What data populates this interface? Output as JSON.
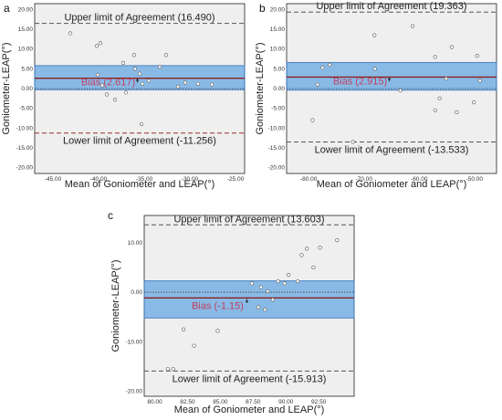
{
  "chart_data": [
    {
      "panel": "a",
      "type": "scatter",
      "xlabel": "Mean of Goniometer and LEAP(°)",
      "ylabel": "Goniometer-LEAP(°)",
      "xlim": [
        -47,
        -24
      ],
      "ylim": [
        -21.5,
        21.5
      ],
      "xticks": [
        "-45.00",
        "-40.00",
        "-35.00",
        "-30.00",
        "-25.00"
      ],
      "xtick_values": [
        -45,
        -40,
        -35,
        -30,
        -25
      ],
      "yticks": [
        "20.00",
        "15.00",
        "10.00",
        "5.00",
        "0.00",
        "-5.00",
        "-10.00",
        "-15.00",
        "-20.00"
      ],
      "ytick_values": [
        20,
        15,
        10,
        5,
        0,
        -5,
        -10,
        -15,
        -20
      ],
      "bias": 2.617,
      "upper_loa": 16.49,
      "lower_loa": -11.256,
      "band": [
        -0.3,
        5.8
      ],
      "upper_label": "Upper limit of Agreement (16.490)",
      "lower_label": "Lower limit of Agreement (-11.256)",
      "bias_label": "Bias (2.617)",
      "x": [
        -43.1,
        -40.2,
        -39.8,
        -40.1,
        -37.3,
        -36.1,
        -35.5,
        -35.2,
        -33.3,
        -32.6,
        -31.3,
        -30.5,
        -39.1,
        -36.0,
        -39.6,
        -38.2,
        -37.0,
        -35.3,
        -29.1,
        -27.6,
        -34.5
      ],
      "y": [
        14.0,
        10.8,
        11.5,
        3.5,
        6.5,
        8.5,
        3.8,
        1.2,
        5.5,
        8.5,
        0.5,
        1.5,
        -1.5,
        5.0,
        0.8,
        -2.8,
        -1.0,
        -9.0,
        1.2,
        1.0,
        2.0
      ]
    },
    {
      "panel": "b",
      "type": "scatter",
      "xlabel": "Mean of Goniometer and LEAP(°)",
      "ylabel": "Goniometer-LEAP(°)",
      "xlim": [
        -84,
        -46
      ],
      "ylim": [
        -21.5,
        21.5
      ],
      "xticks": [
        "-80.00",
        "-70.00",
        "-60.00",
        "-50.00"
      ],
      "xtick_values": [
        -80,
        -70,
        -60,
        -50
      ],
      "yticks": [
        "20.00",
        "15.00",
        "10.00",
        "5.00",
        "0.00",
        "-5.00",
        "-10.00",
        "-15.00",
        "-20.00"
      ],
      "ytick_values": [
        20,
        15,
        10,
        5,
        0,
        -5,
        -10,
        -15,
        -20
      ],
      "bias": 2.915,
      "upper_loa": 19.363,
      "lower_loa": -13.533,
      "band": [
        -0.4,
        6.6
      ],
      "upper_label": "Upper limit of Agreement (19.363)",
      "lower_label": "Lower limit of Agreement (-13.533)",
      "bias_label": "Bias (2.915)",
      "x": [
        -77.5,
        -76.2,
        -68.1,
        -61.2,
        -57.1,
        -54.1,
        -49.5,
        -78.4,
        -79.3,
        -68.0,
        -55.1,
        -56.3,
        -49.0,
        -57.1,
        -50.1,
        -63.4,
        -53.2,
        -72.0
      ],
      "y": [
        5.3,
        6.0,
        13.5,
        15.8,
        8.0,
        10.5,
        8.3,
        1.0,
        -8.0,
        5.0,
        2.5,
        -2.5,
        2.0,
        -5.5,
        -3.5,
        -0.5,
        -6.0,
        -13.5
      ]
    },
    {
      "panel": "c",
      "type": "scatter",
      "xlabel": "Mean of Goniometer and LEAP(°)",
      "ylabel": "Goniometer-LEAP(°)",
      "xlim": [
        79.2,
        95.2
      ],
      "ylim": [
        -21,
        15.5
      ],
      "xticks": [
        "80.00",
        "82.50",
        "85.00",
        "87.50",
        "90.00",
        "92.50"
      ],
      "xtick_values": [
        80,
        82.5,
        85,
        87.5,
        90,
        92.5
      ],
      "yticks": [
        "10.00",
        "0.00",
        "-10.00",
        "-20.00"
      ],
      "ytick_values": [
        10,
        0,
        -10,
        -20
      ],
      "bias": -1.15,
      "upper_loa": 13.603,
      "lower_loa": -15.913,
      "band": [
        -5.2,
        2.3
      ],
      "upper_label": "Upper limit of Agreement (13.603)",
      "lower_label": "Lower limit of Agreement (-15.913)",
      "bias_label": "Bias (-1.15)",
      "x": [
        81.0,
        81.4,
        82.2,
        83.0,
        84.8,
        87.4,
        87.9,
        88.1,
        88.4,
        89.0,
        89.4,
        89.9,
        90.2,
        90.9,
        91.2,
        91.6,
        92.1,
        92.6,
        93.9,
        88.6
      ],
      "y": [
        -15.5,
        -15.5,
        -7.5,
        -10.8,
        -7.8,
        1.8,
        -3.0,
        1.0,
        -3.5,
        -1.5,
        2.2,
        1.8,
        3.5,
        2.2,
        7.5,
        8.8,
        5.0,
        9.0,
        10.5,
        0.2
      ]
    }
  ]
}
